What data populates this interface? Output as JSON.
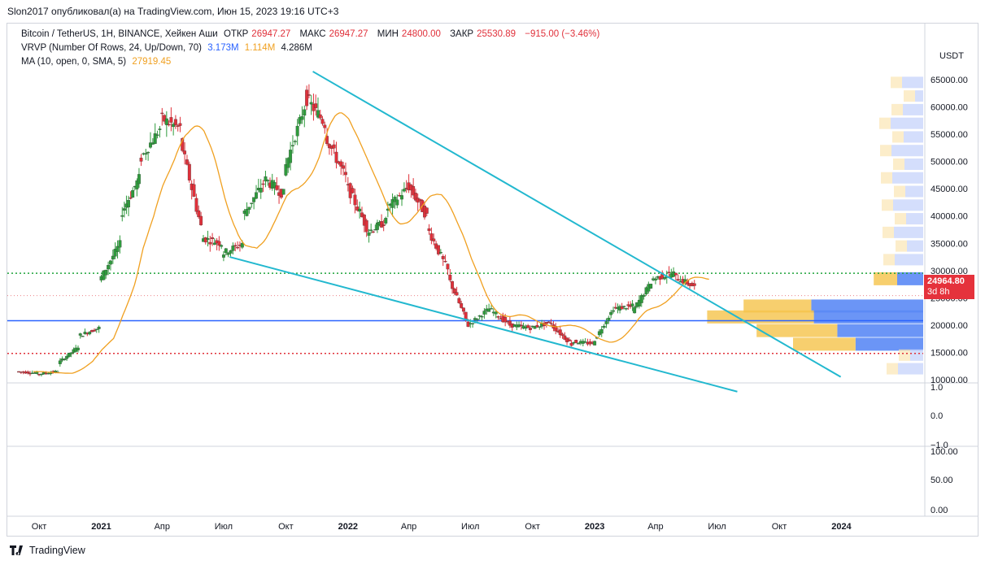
{
  "header": {
    "publish_line": "Slon2017 опубликовал(а) на TradingView.com, Июн 15, 2023 19:16 UTC+3"
  },
  "legend": {
    "symbol": "Bitcoin / TetherUS, 1H, BINANCE, Хейкен Аши",
    "open_label": "ОТКР",
    "open_value": "26947.27",
    "high_label": "МАКС",
    "high_value": "26947.27",
    "low_label": "МИН",
    "low_value": "24800.00",
    "close_label": "ЗАКР",
    "close_value": "25530.89",
    "change": "−915.00 (−3.46%)",
    "vrvp_label": "VRVP (Number Of Rows, 24, Up/Down, 70)",
    "vrvp_up": "3.173M",
    "vrvp_down": "1.114M",
    "vrvp_total": "4.286M",
    "ma_label": "MA (10, open, 0, SMA, 5)",
    "ma_value": "27919.45"
  },
  "price_axis": {
    "currency": "USDT",
    "ticks": [
      "65000.00",
      "60000.00",
      "55000.00",
      "50000.00",
      "45000.00",
      "40000.00",
      "35000.00",
      "30000.00",
      "25000.00",
      "20000.00",
      "15000.00",
      "10000.00"
    ]
  },
  "indicator_axis": {
    "ticks": [
      "1.0",
      "0.0",
      "−1.0"
    ]
  },
  "rsi_axis": {
    "ticks": [
      "100.00",
      "50.00",
      "0.00"
    ]
  },
  "time_axis": {
    "labels": [
      "Окт",
      "2021",
      "Апр",
      "Июл",
      "Окт",
      "2022",
      "Апр",
      "Июл",
      "Окт",
      "2023",
      "Апр",
      "Июл",
      "Окт",
      "2024"
    ]
  },
  "last_price": {
    "value": "24964.80",
    "countdown": "3d 8h"
  },
  "footer": {
    "brand": "TradingView"
  },
  "colors": {
    "up": "#2e9b3c",
    "down": "#e0303a",
    "ma": "#f0a020",
    "trend": "#22b8cf",
    "level_green": "#1fa33a",
    "level_red": "#e0303a",
    "level_blue": "#2962ff",
    "vp_up": "#5b8af5",
    "vp_down": "#f5c34a"
  },
  "chart_data": {
    "type": "candlestick",
    "title": "Bitcoin / TetherUS, 1H, BINANCE, Хейкен Аши",
    "ylim": [
      7000,
      70000
    ],
    "x_range": [
      "2020-08-15",
      "2024-05-01"
    ],
    "candles_approx": [
      [
        "2020-09-01",
        11500,
        11200
      ],
      [
        "2020-10-01",
        11000,
        11500
      ],
      [
        "2020-11-01",
        13000,
        16000
      ],
      [
        "2020-12-01",
        18000,
        19500
      ],
      [
        "2021-01-01",
        28000,
        35000
      ],
      [
        "2021-02-01",
        40000,
        47000
      ],
      [
        "2021-03-01",
        50000,
        56000
      ],
      [
        "2021-04-01",
        58000,
        56000
      ],
      [
        "2021-05-01",
        54000,
        38000
      ],
      [
        "2021-06-01",
        36000,
        35000
      ],
      [
        "2021-07-01",
        33000,
        35000
      ],
      [
        "2021-08-01",
        40000,
        46000
      ],
      [
        "2021-09-01",
        47000,
        44000
      ],
      [
        "2021-10-01",
        48000,
        60000
      ],
      [
        "2021-11-01",
        62000,
        57000
      ],
      [
        "2021-12-01",
        55000,
        47000
      ],
      [
        "2022-01-01",
        46000,
        38000
      ],
      [
        "2022-02-01",
        37000,
        39000
      ],
      [
        "2022-03-01",
        41000,
        45000
      ],
      [
        "2022-04-01",
        46000,
        40000
      ],
      [
        "2022-05-01",
        38000,
        30000
      ],
      [
        "2022-06-01",
        29000,
        20000
      ],
      [
        "2022-07-01",
        20000,
        23000
      ],
      [
        "2022-08-01",
        23000,
        20000
      ],
      [
        "2022-09-01",
        20000,
        19500
      ],
      [
        "2022-10-01",
        19500,
        20500
      ],
      [
        "2022-11-01",
        20000,
        16500
      ],
      [
        "2022-12-01",
        17000,
        16600
      ],
      [
        "2023-01-01",
        16600,
        23000
      ],
      [
        "2023-02-01",
        23000,
        23500
      ],
      [
        "2023-03-01",
        22500,
        28500
      ],
      [
        "2023-04-01",
        28500,
        29500
      ],
      [
        "2023-05-01",
        29000,
        27000
      ],
      [
        "2023-06-01",
        27000,
        25000
      ]
    ],
    "levels": [
      {
        "name": "green-dotted",
        "value": 29500
      },
      {
        "name": "red-dotted",
        "value": 14800
      },
      {
        "name": "blue-solid",
        "value": 20800
      },
      {
        "name": "red-thin-dotted",
        "value": 25400
      }
    ],
    "trendlines": [
      {
        "from": [
          "2021-11-10",
          66500
        ],
        "to": [
          "2023-12-31",
          10500
        ]
      },
      {
        "from": [
          "2021-07-10",
          32500
        ],
        "to": [
          "2023-07-31",
          7800
        ]
      }
    ],
    "volume_profile": [
      {
        "price": 28500,
        "up": 1.0,
        "down": 0.9
      },
      {
        "price": 23500,
        "up": 4.3,
        "down": 2.6
      },
      {
        "price": 21500,
        "up": 4.2,
        "down": 4.1
      },
      {
        "price": 19000,
        "up": 3.3,
        "down": 3.1
      },
      {
        "price": 16500,
        "up": 2.6,
        "down": 2.4
      }
    ]
  }
}
